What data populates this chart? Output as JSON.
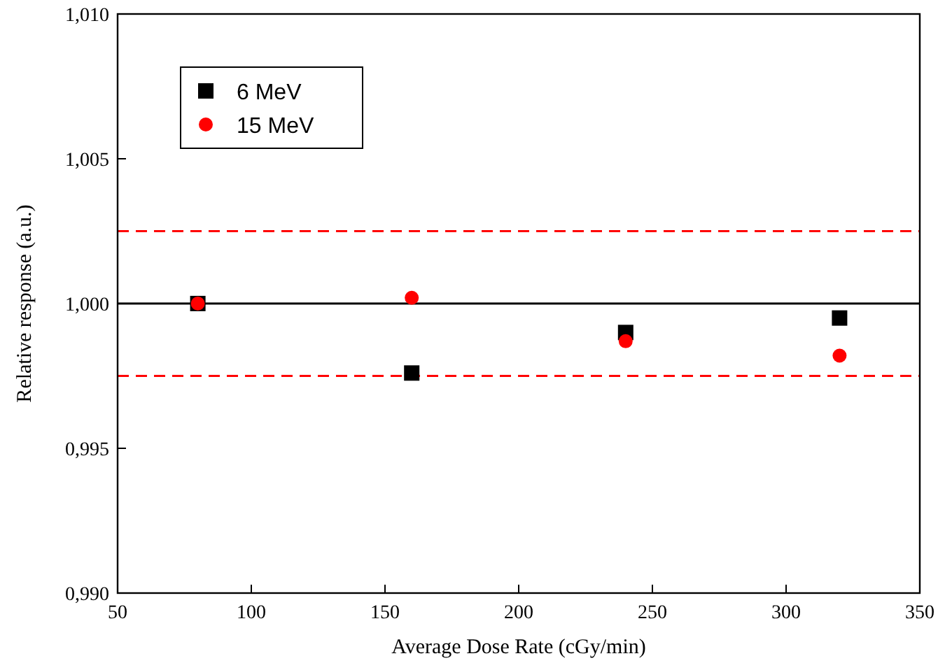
{
  "chart_data": {
    "type": "scatter",
    "xlabel": "Average Dose Rate (cGy/min)",
    "ylabel": "Relative response (a.u.)",
    "xlim": [
      50,
      350
    ],
    "xticks": [
      50,
      100,
      150,
      200,
      250,
      300,
      350
    ],
    "ylim": [
      0.99,
      1.01
    ],
    "yticks": [
      {
        "value": 0.99,
        "label": "0,990"
      },
      {
        "value": 0.995,
        "label": "0,995"
      },
      {
        "value": 1.0,
        "label": "1,000"
      },
      {
        "value": 1.005,
        "label": "1,005"
      },
      {
        "value": 1.01,
        "label": "1,010"
      }
    ],
    "x": [
      80,
      160,
      240,
      320
    ],
    "series": [
      {
        "name": "6 MeV",
        "color": "#000000",
        "marker": "square",
        "values": [
          1.0,
          0.9976,
          0.999,
          0.9995
        ]
      },
      {
        "name": "15 MeV",
        "color": "#ff0000",
        "marker": "circle",
        "values": [
          1.0,
          1.0002,
          0.9987,
          0.9982
        ]
      }
    ],
    "ref_lines": [
      {
        "axis": "y",
        "value": 1.0,
        "color": "#000000",
        "line_style": "solid"
      },
      {
        "axis": "y",
        "value": 1.0025,
        "color": "#ff0000",
        "line_style": "dashed"
      },
      {
        "axis": "y",
        "value": 0.9975,
        "color": "#ff0000",
        "line_style": "dashed"
      }
    ],
    "legend": "top left",
    "grid": false
  }
}
